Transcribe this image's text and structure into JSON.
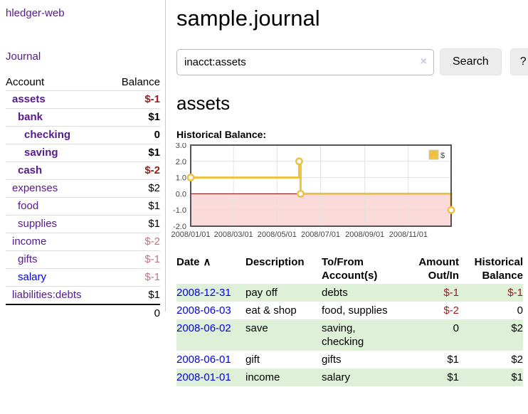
{
  "sidebar": {
    "brand": "hledger-web",
    "journal_link": "Journal",
    "accounts_table": {
      "headers": {
        "account": "Account",
        "balance": "Balance"
      },
      "rows": [
        {
          "name": "assets",
          "balance": "$-1"
        },
        {
          "name": "bank",
          "balance": "$1"
        },
        {
          "name": "checking",
          "balance": "0"
        },
        {
          "name": "saving",
          "balance": "$1"
        },
        {
          "name": "cash",
          "balance": "$-2"
        },
        {
          "name": "expenses",
          "balance": "$2"
        },
        {
          "name": "food",
          "balance": "$1"
        },
        {
          "name": "supplies",
          "balance": "$1"
        },
        {
          "name": "income",
          "balance": "$-2"
        },
        {
          "name": "gifts",
          "balance": "$-1"
        },
        {
          "name": "salary",
          "balance": "$-1"
        },
        {
          "name": "liabilities:debts",
          "balance": "$1"
        }
      ],
      "total": "0"
    }
  },
  "header": {
    "title": "sample.journal"
  },
  "search": {
    "query": "inacct:assets",
    "clear_icon": "×",
    "search_label": "Search",
    "help_label": "?"
  },
  "register": {
    "account_heading": "assets",
    "table": {
      "headers": {
        "date": "Date",
        "sort_icon": "∧",
        "description": "Description",
        "accounts": "To/From Account(s)",
        "amount": "Amount Out/In",
        "balance": "Historical Balance"
      },
      "rows": [
        {
          "date": "2008-12-31",
          "description": "pay off",
          "accounts": "debts",
          "amount": "$-1",
          "balance": "$-1"
        },
        {
          "date": "2008-06-03",
          "description": "eat & shop",
          "accounts": "food, supplies",
          "amount": "$-2",
          "balance": "0"
        },
        {
          "date": "2008-06-02",
          "description": "save",
          "accounts": "saving, checking",
          "amount": "0",
          "balance": "$2"
        },
        {
          "date": "2008-06-01",
          "description": "gift",
          "accounts": "gifts",
          "amount": "$1",
          "balance": "$2"
        },
        {
          "date": "2008-01-01",
          "description": "income",
          "accounts": "salary",
          "amount": "$1",
          "balance": "$1"
        }
      ]
    }
  },
  "chart_data": {
    "type": "line",
    "step": true,
    "title": "Historical Balance:",
    "series": [
      {
        "name": "$",
        "color": "#edc240",
        "points": [
          [
            "2008/01/01",
            1
          ],
          [
            "2008/06/01",
            2
          ],
          [
            "2008/06/03",
            0
          ],
          [
            "2008/12/31",
            -1
          ]
        ]
      }
    ],
    "x_range": [
      "2008/01/01",
      "2008/12/31"
    ],
    "x_ticks": [
      "2008/01/01",
      "2008/03/01",
      "2008/05/01",
      "2008/07/01",
      "2008/09/01",
      "2008/11/01"
    ],
    "y_ticks": [
      "3.0",
      "2.0",
      "1.0",
      "0.0",
      "-1.0",
      "-2.0"
    ],
    "ylim": [
      -2,
      3
    ],
    "grid": true,
    "legend_position": "top-right",
    "line_color": "#edc240",
    "point_fill": "#ffffff",
    "zero_line_color": "#8b0000",
    "negative_region_color": "#fbdada",
    "plot_border_color": "#545454",
    "gridline_color": "#e2e2e2"
  }
}
